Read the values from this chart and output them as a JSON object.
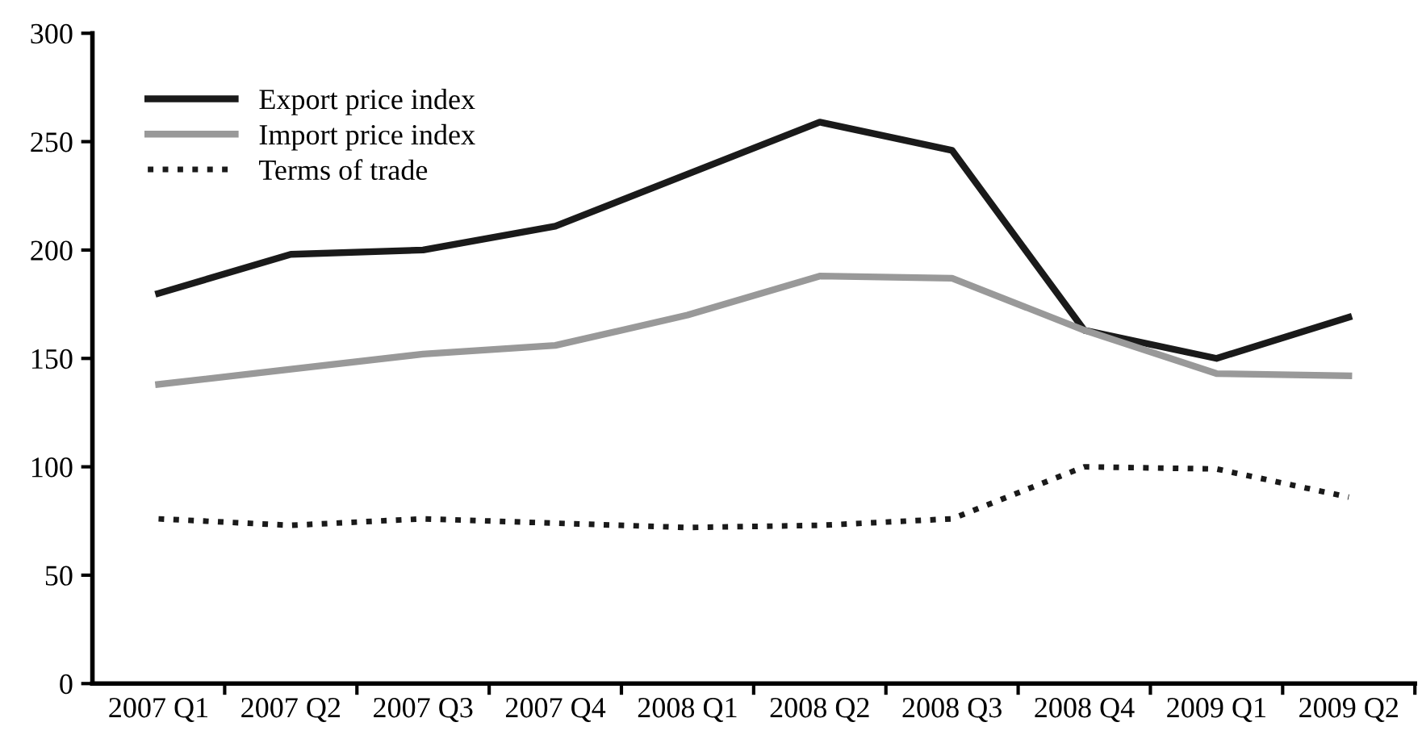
{
  "chart_data": {
    "type": "line",
    "categories": [
      "2007 Q1",
      "2007 Q2",
      "2007 Q3",
      "2007 Q4",
      "2008 Q1",
      "2008 Q2",
      "2008 Q3",
      "2008 Q4",
      "2009 Q1",
      "2009 Q2"
    ],
    "series": [
      {
        "name": "Export price index",
        "color": "#1a1a1a",
        "line_style": "solid",
        "values": [
          180,
          198,
          200,
          211,
          235,
          259,
          246,
          163,
          150,
          169
        ]
      },
      {
        "name": "Import price index",
        "color": "#999999",
        "line_style": "solid",
        "values": [
          138,
          145,
          152,
          156,
          170,
          188,
          187,
          163,
          143,
          142
        ]
      },
      {
        "name": "Terms of trade",
        "color": "#1a1a1a",
        "line_style": "dotted",
        "values": [
          76,
          73,
          76,
          74,
          72,
          73,
          76,
          100,
          99,
          86
        ]
      }
    ],
    "ylim": [
      0,
      300
    ],
    "yticks": [
      0,
      50,
      100,
      150,
      200,
      250,
      300
    ],
    "grid": false,
    "legend": "top left",
    "marker": "none"
  }
}
